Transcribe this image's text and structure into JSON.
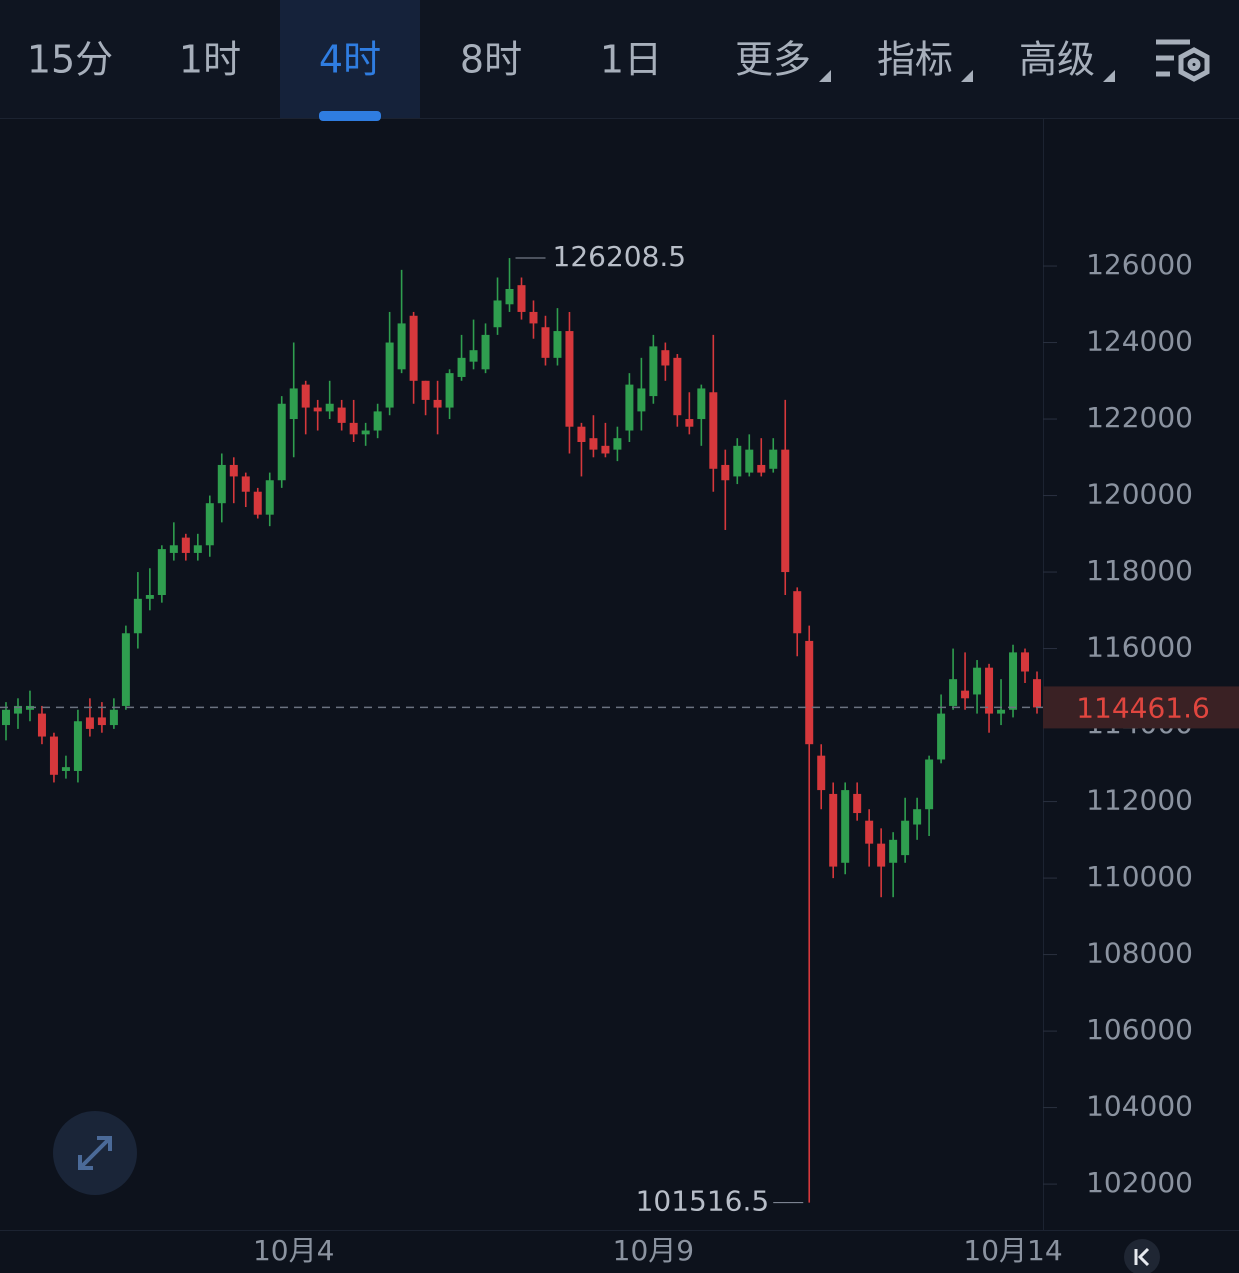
{
  "tabs": [
    {
      "label": "15分"
    },
    {
      "label": "1时"
    },
    {
      "label": "4时"
    },
    {
      "label": "8时"
    },
    {
      "label": "1日"
    },
    {
      "label": "更多",
      "dropdown": true
    },
    {
      "label": "指标",
      "dropdown": true
    },
    {
      "label": "高级",
      "dropdown": true
    }
  ],
  "active_tab": 2,
  "chart_data": {
    "type": "candlestick",
    "up_color": "#2f9e4f",
    "down_color": "#d6383c",
    "open": [
      114000,
      114300,
      114400,
      114300,
      113700,
      112800,
      112800,
      114200,
      114200,
      114000,
      114500,
      116400,
      117300,
      117400,
      118500,
      118900,
      118500,
      118700,
      119800,
      120800,
      120500,
      120100,
      119500,
      120400,
      122000,
      122900,
      122300,
      122200,
      122300,
      121900,
      121600,
      121700,
      122300,
      123300,
      124700,
      123000,
      122500,
      122300,
      123100,
      123500,
      123300,
      124400,
      125000,
      125500,
      124800,
      124400,
      123600,
      124300,
      121800,
      121500,
      121300,
      121200,
      121700,
      122200,
      122600,
      123800,
      123600,
      122000,
      122000,
      122700,
      120800,
      120500,
      120600,
      120800,
      120700,
      121200,
      117500,
      116200,
      113200,
      112200,
      110400,
      112200,
      111500,
      110900,
      110400,
      110600,
      111400,
      111800,
      113100,
      114500,
      114900,
      114800,
      115500,
      114300,
      114400,
      115900,
      115200
    ],
    "high": [
      114600,
      114700,
      114900,
      114500,
      113800,
      113200,
      114400,
      114700,
      114600,
      114700,
      116600,
      118000,
      118100,
      118700,
      119300,
      119000,
      119000,
      120000,
      121100,
      121000,
      120600,
      120200,
      120600,
      122600,
      124000,
      123000,
      122500,
      123000,
      122500,
      122500,
      121900,
      122400,
      124800,
      125900,
      124800,
      123000,
      123000,
      123300,
      124200,
      124600,
      124500,
      125700,
      126208.5,
      125700,
      125100,
      124700,
      124900,
      124800,
      121900,
      122100,
      121900,
      121800,
      123200,
      123600,
      124200,
      124000,
      123700,
      122700,
      122900,
      124200,
      121200,
      121500,
      121600,
      121500,
      121500,
      122500,
      117600,
      116600,
      113500,
      112500,
      112500,
      112500,
      111800,
      111300,
      111200,
      112100,
      112100,
      113200,
      114800,
      116000,
      115900,
      115700,
      115600,
      115200,
      116100,
      116000,
      115400
    ],
    "low": [
      113600,
      113900,
      114100,
      113500,
      112500,
      112600,
      112500,
      113700,
      113800,
      113900,
      114400,
      116000,
      117000,
      117200,
      118300,
      118300,
      118300,
      118400,
      119300,
      119800,
      119700,
      119400,
      119200,
      120200,
      121000,
      121600,
      121700,
      122000,
      121700,
      121400,
      121300,
      121500,
      122100,
      123200,
      122400,
      122100,
      121600,
      122000,
      123000,
      123300,
      123200,
      124200,
      124800,
      124600,
      124100,
      123400,
      123400,
      121100,
      120500,
      121000,
      121000,
      120900,
      121400,
      121700,
      122400,
      123000,
      121800,
      121600,
      121300,
      120100,
      119100,
      120300,
      120500,
      120500,
      120600,
      117400,
      115800,
      101516.5,
      111800,
      110000,
      110100,
      111500,
      110300,
      109500,
      109500,
      110400,
      111000,
      111100,
      113000,
      114400,
      114400,
      114300,
      113800,
      114000,
      114200,
      115100,
      114300
    ],
    "close": [
      114400,
      114500,
      114500,
      113700,
      112700,
      112900,
      114100,
      113900,
      114000,
      114400,
      116400,
      117300,
      117400,
      118600,
      118700,
      118500,
      118700,
      119800,
      120800,
      120500,
      120100,
      119500,
      120400,
      122400,
      122800,
      122300,
      122200,
      122400,
      121900,
      121600,
      121700,
      122200,
      124000,
      124500,
      123000,
      122500,
      122300,
      123200,
      123600,
      123800,
      124200,
      125100,
      125400,
      124800,
      124500,
      123600,
      124300,
      121800,
      121400,
      121200,
      121100,
      121500,
      122900,
      122800,
      123900,
      123400,
      122100,
      121800,
      122800,
      120700,
      120400,
      121300,
      121200,
      120600,
      121200,
      118000,
      116400,
      113500,
      112300,
      110300,
      112300,
      111700,
      110900,
      110300,
      111000,
      111500,
      111800,
      113100,
      114300,
      115200,
      114700,
      115500,
      114300,
      114400,
      115900,
      115400,
      114461.6
    ],
    "xlim": [
      -0.5,
      86.5
    ],
    "xticks": [
      {
        "value": 24,
        "label": "10月4"
      },
      {
        "value": 54,
        "label": "10月9"
      },
      {
        "value": 84,
        "label": "10月14"
      }
    ],
    "ylim": [
      100800,
      129870
    ],
    "yticks": [
      102000,
      104000,
      106000,
      108000,
      110000,
      112000,
      114000,
      116000,
      118000,
      120000,
      122000,
      124000,
      126000
    ]
  }
}
